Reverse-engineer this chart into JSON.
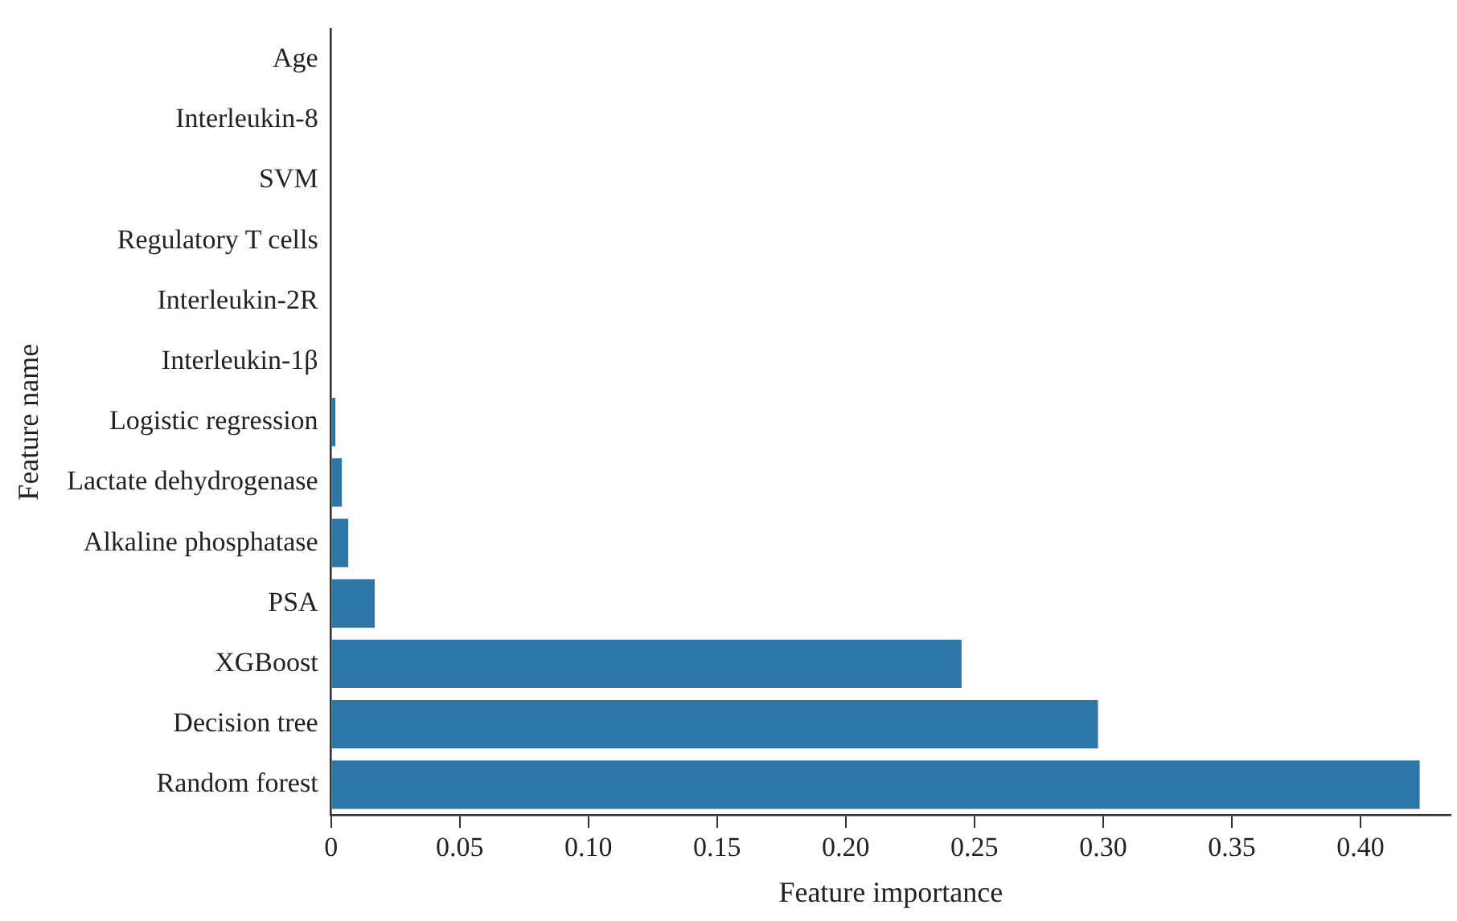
{
  "chart_data": {
    "type": "bar",
    "orientation": "horizontal",
    "xlabel": "Feature importance",
    "ylabel": "Feature name",
    "categories": [
      "Age",
      "Interleukin-8",
      "SVM",
      "Regulatory T cells",
      "Interleukin-2R",
      "Interleukin-1β",
      "Logistic regression",
      "Lactate dehydrogenase",
      "Alkaline phosphatase",
      "PSA",
      "XGBoost",
      "Decision tree",
      "Random forest"
    ],
    "values": [
      0,
      0,
      0,
      0,
      0,
      0,
      0.0017,
      0.0042,
      0.0067,
      0.017,
      0.245,
      0.298,
      0.423
    ],
    "color": "#2c76a8",
    "xlim": [
      0,
      0.435
    ],
    "xticks": [
      {
        "value": 0,
        "label": "0"
      },
      {
        "value": 0.05,
        "label": "0.05"
      },
      {
        "value": 0.1,
        "label": "0.10"
      },
      {
        "value": 0.15,
        "label": "0.15"
      },
      {
        "value": 0.2,
        "label": "0.20"
      },
      {
        "value": 0.25,
        "label": "0.25"
      },
      {
        "value": 0.3,
        "label": "0.30"
      },
      {
        "value": 0.35,
        "label": "0.35"
      },
      {
        "value": 0.4,
        "label": "0.40"
      }
    ],
    "grid": false,
    "legend": false
  }
}
